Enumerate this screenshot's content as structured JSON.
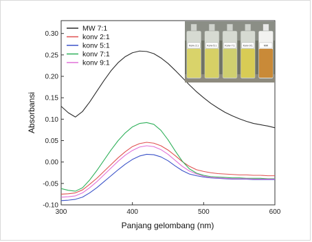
{
  "chart_data": {
    "type": "line",
    "xlabel": "Panjang gelombang (nm)",
    "ylabel": "Absorbansi",
    "xlim": [
      300,
      600
    ],
    "ylim": [
      -0.1,
      0.33
    ],
    "xticks": [
      "300",
      "400",
      "500",
      "600"
    ],
    "yticks": [
      "-0.10",
      "-0.05",
      "0.00",
      "0.05",
      "0.10",
      "0.15",
      "0.20",
      "0.25",
      "0.30"
    ],
    "legend_position": "top-left",
    "series": [
      {
        "name": "MW  7:1",
        "color": "#2a2a2a",
        "x": [
          300,
          310,
          320,
          330,
          340,
          350,
          360,
          370,
          380,
          390,
          400,
          410,
          420,
          430,
          440,
          450,
          460,
          470,
          480,
          490,
          500,
          510,
          520,
          530,
          540,
          550,
          560,
          570,
          580,
          590,
          600
        ],
        "y": [
          0.13,
          0.115,
          0.105,
          0.118,
          0.14,
          0.165,
          0.19,
          0.213,
          0.232,
          0.246,
          0.255,
          0.259,
          0.258,
          0.253,
          0.243,
          0.23,
          0.214,
          0.197,
          0.18,
          0.164,
          0.15,
          0.137,
          0.126,
          0.116,
          0.108,
          0.101,
          0.095,
          0.09,
          0.087,
          0.084,
          0.08
        ]
      },
      {
        "name": "konv  2:1",
        "color": "#e05050",
        "x": [
          300,
          310,
          320,
          330,
          340,
          350,
          360,
          370,
          380,
          390,
          400,
          410,
          420,
          430,
          440,
          450,
          460,
          470,
          480,
          490,
          500,
          510,
          520,
          530,
          540,
          550,
          560,
          570,
          580,
          590,
          600
        ],
        "y": [
          -0.075,
          -0.074,
          -0.072,
          -0.065,
          -0.052,
          -0.038,
          -0.022,
          -0.006,
          0.01,
          0.024,
          0.036,
          0.043,
          0.046,
          0.044,
          0.038,
          0.028,
          0.015,
          0.001,
          -0.01,
          -0.018,
          -0.022,
          -0.025,
          -0.027,
          -0.028,
          -0.029,
          -0.03,
          -0.03,
          -0.031,
          -0.031,
          -0.032,
          -0.032
        ]
      },
      {
        "name": "konv  5:1",
        "color": "#3a52c8",
        "x": [
          300,
          310,
          320,
          330,
          340,
          350,
          360,
          370,
          380,
          390,
          400,
          410,
          420,
          430,
          440,
          450,
          460,
          470,
          480,
          490,
          500,
          510,
          520,
          530,
          540,
          550,
          560,
          570,
          580,
          590,
          600
        ],
        "y": [
          -0.09,
          -0.089,
          -0.087,
          -0.082,
          -0.072,
          -0.06,
          -0.046,
          -0.032,
          -0.018,
          -0.005,
          0.006,
          0.014,
          0.018,
          0.017,
          0.012,
          0.003,
          -0.009,
          -0.02,
          -0.028,
          -0.032,
          -0.035,
          -0.037,
          -0.038,
          -0.039,
          -0.04,
          -0.04,
          -0.04,
          -0.041,
          -0.041,
          -0.041,
          -0.041
        ]
      },
      {
        "name": "konv  7:1",
        "color": "#2fb05a",
        "x": [
          300,
          310,
          320,
          330,
          340,
          350,
          360,
          370,
          380,
          390,
          400,
          410,
          420,
          430,
          440,
          450,
          460,
          470,
          480,
          490,
          500,
          510,
          520,
          530,
          540,
          550,
          560,
          570,
          580,
          590,
          600
        ],
        "y": [
          -0.062,
          -0.066,
          -0.068,
          -0.06,
          -0.042,
          -0.02,
          0.004,
          0.028,
          0.05,
          0.068,
          0.082,
          0.09,
          0.092,
          0.088,
          0.074,
          0.052,
          0.026,
          0.002,
          -0.016,
          -0.026,
          -0.031,
          -0.034,
          -0.035,
          -0.036,
          -0.037,
          -0.037,
          -0.038,
          -0.038,
          -0.038,
          -0.039,
          -0.039
        ]
      },
      {
        "name": "konv  9:1",
        "color": "#e070d8",
        "x": [
          300,
          310,
          320,
          330,
          340,
          350,
          360,
          370,
          380,
          390,
          400,
          410,
          420,
          430,
          440,
          450,
          460,
          470,
          480,
          490,
          500,
          510,
          520,
          530,
          540,
          550,
          560,
          570,
          580,
          590,
          600
        ],
        "y": [
          -0.082,
          -0.081,
          -0.079,
          -0.072,
          -0.06,
          -0.046,
          -0.03,
          -0.014,
          0.002,
          0.016,
          0.027,
          0.035,
          0.038,
          0.036,
          0.029,
          0.018,
          0.004,
          -0.01,
          -0.021,
          -0.028,
          -0.033,
          -0.036,
          -0.037,
          -0.038,
          -0.039,
          -0.039,
          -0.039,
          -0.04,
          -0.04,
          -0.04,
          -0.04
        ]
      }
    ],
    "inset_photo": {
      "labels": [
        "Konv 2:1",
        "Konv 5:1",
        "Konv 7:1",
        "Konv 9:1",
        "MW"
      ],
      "liquid_colors": [
        "#d9d36a",
        "#d6d066",
        "#cfcf70",
        "#d8cc55",
        "#c98a38"
      ]
    }
  }
}
